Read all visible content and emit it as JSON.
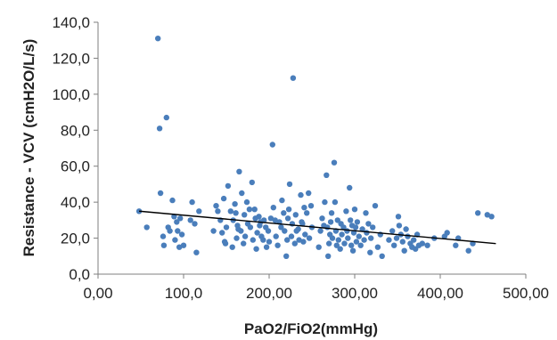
{
  "chart_data": {
    "type": "scatter",
    "xlabel": "PaO2/FiO2(mmHg)",
    "ylabel": "Resistance - VCV (cmH2O/L/s)",
    "xlim": [
      0,
      500
    ],
    "ylim": [
      0,
      140
    ],
    "xticks": [
      0,
      100,
      200,
      300,
      400,
      500
    ],
    "yticks": [
      0,
      20,
      40,
      60,
      80,
      100,
      120,
      140
    ],
    "xtick_labels": [
      "0,00",
      "100,0",
      "200,00",
      "300,00",
      "400,00",
      "500,00"
    ],
    "ytick_labels": [
      "0,0",
      "20,0",
      "40,0",
      "60,0",
      "80,0",
      "100,0",
      "120,0",
      "140,0"
    ],
    "grid": false,
    "legend": "none",
    "colors": {
      "points": "#4a7ebb",
      "trendline": "#000000"
    },
    "trendline": {
      "x": [
        48,
        465
      ],
      "y": [
        35,
        17
      ]
    },
    "points": [
      [
        48,
        35
      ],
      [
        57,
        26
      ],
      [
        70,
        131
      ],
      [
        72,
        81
      ],
      [
        73,
        45
      ],
      [
        76,
        21
      ],
      [
        77,
        16
      ],
      [
        80,
        87
      ],
      [
        82,
        26
      ],
      [
        84,
        24
      ],
      [
        87,
        41
      ],
      [
        89,
        32
      ],
      [
        90,
        19
      ],
      [
        92,
        29
      ],
      [
        93,
        24
      ],
      [
        95,
        15
      ],
      [
        96,
        31
      ],
      [
        98,
        22
      ],
      [
        100,
        16
      ],
      [
        108,
        30
      ],
      [
        110,
        40
      ],
      [
        113,
        28
      ],
      [
        115,
        12
      ],
      [
        118,
        35
      ],
      [
        135,
        24
      ],
      [
        138,
        38
      ],
      [
        140,
        35
      ],
      [
        143,
        30
      ],
      [
        145,
        23
      ],
      [
        147,
        42
      ],
      [
        148,
        18
      ],
      [
        149,
        17
      ],
      [
        150,
        26
      ],
      [
        152,
        49
      ],
      [
        155,
        35
      ],
      [
        157,
        15
      ],
      [
        158,
        30
      ],
      [
        160,
        39
      ],
      [
        161,
        34
      ],
      [
        162,
        20
      ],
      [
        163,
        27
      ],
      [
        164,
        25
      ],
      [
        165,
        57
      ],
      [
        167,
        24
      ],
      [
        168,
        45
      ],
      [
        170,
        17
      ],
      [
        171,
        33
      ],
      [
        172,
        21
      ],
      [
        174,
        40
      ],
      [
        175,
        28
      ],
      [
        177,
        36
      ],
      [
        178,
        26
      ],
      [
        180,
        51
      ],
      [
        181,
        19
      ],
      [
        183,
        36
      ],
      [
        184,
        31
      ],
      [
        185,
        14
      ],
      [
        186,
        23
      ],
      [
        188,
        32
      ],
      [
        189,
        27
      ],
      [
        190,
        29
      ],
      [
        191,
        21
      ],
      [
        193,
        19
      ],
      [
        194,
        30
      ],
      [
        196,
        26
      ],
      [
        197,
        15
      ],
      [
        199,
        24
      ],
      [
        200,
        18
      ],
      [
        202,
        31
      ],
      [
        204,
        72
      ],
      [
        205,
        37
      ],
      [
        207,
        30
      ],
      [
        208,
        21
      ],
      [
        210,
        16
      ],
      [
        212,
        29
      ],
      [
        214,
        26
      ],
      [
        215,
        41
      ],
      [
        217,
        34
      ],
      [
        218,
        24
      ],
      [
        220,
        10
      ],
      [
        221,
        19
      ],
      [
        222,
        31
      ],
      [
        223,
        36
      ],
      [
        224,
        50
      ],
      [
        226,
        21
      ],
      [
        227,
        28
      ],
      [
        228,
        109
      ],
      [
        230,
        17
      ],
      [
        231,
        33
      ],
      [
        232,
        24
      ],
      [
        234,
        25
      ],
      [
        235,
        19
      ],
      [
        237,
        44
      ],
      [
        238,
        29
      ],
      [
        239,
        28
      ],
      [
        240,
        18
      ],
      [
        241,
        37
      ],
      [
        242,
        22
      ],
      [
        244,
        34
      ],
      [
        246,
        45
      ],
      [
        247,
        20
      ],
      [
        249,
        38
      ],
      [
        250,
        26
      ],
      [
        258,
        15
      ],
      [
        260,
        24
      ],
      [
        262,
        31
      ],
      [
        264,
        27
      ],
      [
        265,
        40
      ],
      [
        267,
        55
      ],
      [
        268,
        26
      ],
      [
        269,
        10
      ],
      [
        270,
        17
      ],
      [
        271,
        22
      ],
      [
        272,
        29
      ],
      [
        273,
        34
      ],
      [
        274,
        20
      ],
      [
        276,
        62
      ],
      [
        277,
        40
      ],
      [
        278,
        24
      ],
      [
        279,
        16
      ],
      [
        280,
        30
      ],
      [
        281,
        19
      ],
      [
        283,
        14
      ],
      [
        284,
        28
      ],
      [
        285,
        22
      ],
      [
        287,
        26
      ],
      [
        288,
        17
      ],
      [
        290,
        35
      ],
      [
        291,
        24
      ],
      [
        292,
        20
      ],
      [
        294,
        48
      ],
      [
        295,
        30
      ],
      [
        296,
        16
      ],
      [
        297,
        27
      ],
      [
        298,
        13
      ],
      [
        299,
        23
      ],
      [
        300,
        36
      ],
      [
        301,
        26
      ],
      [
        302,
        18
      ],
      [
        303,
        29
      ],
      [
        305,
        21
      ],
      [
        307,
        16
      ],
      [
        309,
        25
      ],
      [
        311,
        19
      ],
      [
        313,
        34
      ],
      [
        314,
        23
      ],
      [
        316,
        28
      ],
      [
        318,
        12
      ],
      [
        319,
        20
      ],
      [
        321,
        26
      ],
      [
        324,
        38
      ],
      [
        327,
        15
      ],
      [
        330,
        22
      ],
      [
        332,
        10
      ],
      [
        340,
        19
      ],
      [
        344,
        24
      ],
      [
        346,
        16
      ],
      [
        349,
        20
      ],
      [
        351,
        32
      ],
      [
        352,
        27
      ],
      [
        354,
        22
      ],
      [
        356,
        18
      ],
      [
        358,
        13
      ],
      [
        360,
        25
      ],
      [
        362,
        21
      ],
      [
        365,
        17
      ],
      [
        367,
        15
      ],
      [
        369,
        19
      ],
      [
        371,
        14
      ],
      [
        373,
        22
      ],
      [
        375,
        16
      ],
      [
        379,
        17
      ],
      [
        385,
        16
      ],
      [
        393,
        20
      ],
      [
        405,
        21
      ],
      [
        408,
        23
      ],
      [
        418,
        16
      ],
      [
        421,
        20
      ],
      [
        433,
        13
      ],
      [
        438,
        17
      ],
      [
        444,
        34
      ],
      [
        455,
        33
      ],
      [
        460,
        32
      ]
    ]
  }
}
